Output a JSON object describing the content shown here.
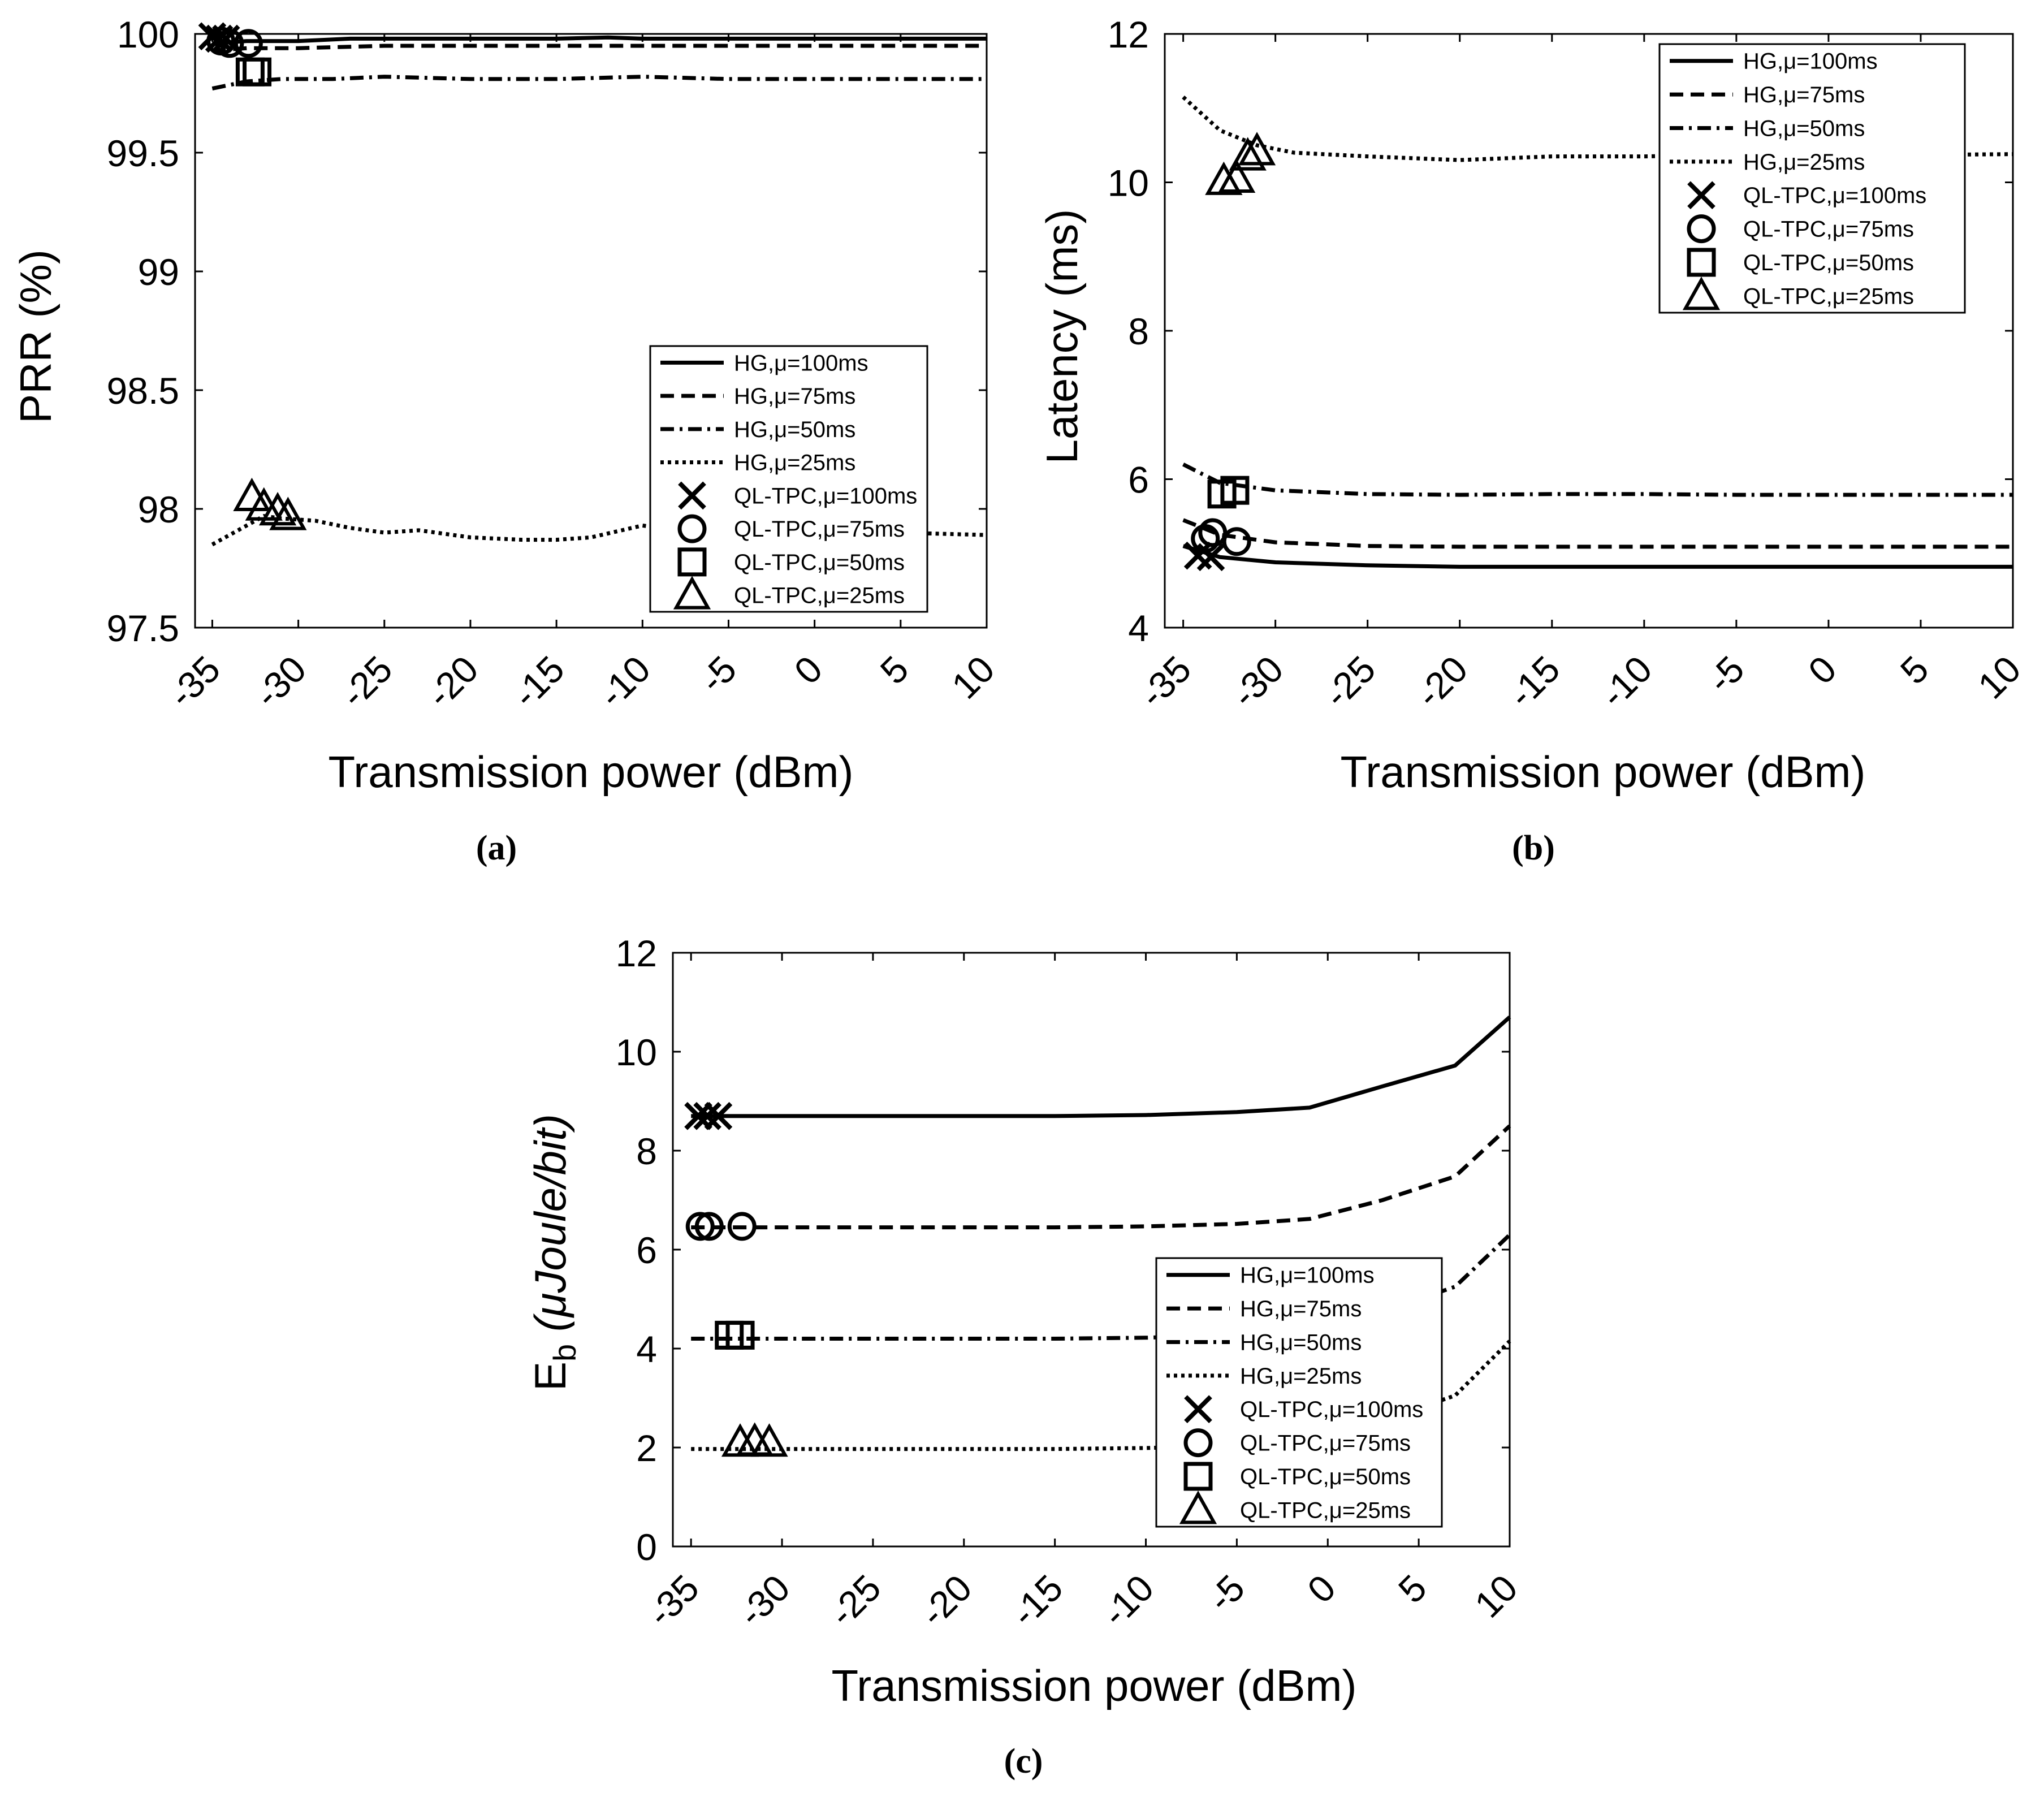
{
  "chart_data": [
    {
      "id": "a",
      "type": "line",
      "caption": "(a)",
      "xlabel": "Transmission power (dBm)",
      "ylabel": "PRR (%)",
      "xlim": [
        -36,
        10
      ],
      "ylim": [
        97.5,
        100
      ],
      "xticks": [
        "-35",
        "-30",
        "-25",
        "-20",
        "-15",
        "-10",
        "-5",
        "0",
        "5",
        "10"
      ],
      "yticks": [
        "97.5",
        "98",
        "98.5",
        "99",
        "99.5",
        "100"
      ],
      "legend_position": "middle-right",
      "series": [
        {
          "name": "HG,μ=100ms",
          "style": "solid",
          "x": [
            -35,
            -33,
            -30,
            -27,
            -25,
            -20,
            -15,
            -12,
            -10,
            -5,
            0,
            5,
            10
          ],
          "y": [
            99.96,
            99.97,
            99.97,
            99.98,
            99.98,
            99.98,
            99.98,
            99.985,
            99.98,
            99.98,
            99.98,
            99.98,
            99.98
          ]
        },
        {
          "name": "HG,μ=75ms",
          "style": "dash",
          "x": [
            -35,
            -33,
            -30,
            -25,
            -20,
            -15,
            -10,
            -5,
            0,
            5,
            10
          ],
          "y": [
            99.93,
            99.94,
            99.94,
            99.95,
            99.95,
            99.95,
            99.95,
            99.95,
            99.95,
            99.95,
            99.95
          ]
        },
        {
          "name": "HG,μ=50ms",
          "style": "dashdot",
          "x": [
            -35,
            -33,
            -31,
            -28,
            -25,
            -20,
            -15,
            -10,
            -5,
            0,
            5,
            10
          ],
          "y": [
            99.77,
            99.8,
            99.81,
            99.81,
            99.82,
            99.81,
            99.81,
            99.82,
            99.81,
            99.81,
            99.81,
            99.81
          ]
        },
        {
          "name": "HG,μ=25ms",
          "style": "dot",
          "x": [
            -35,
            -33,
            -32,
            -31,
            -29,
            -27,
            -25,
            -23,
            -20,
            -17,
            -15,
            -13,
            -10,
            -8,
            -5,
            -3,
            0,
            2,
            5,
            10
          ],
          "y": [
            97.85,
            97.93,
            97.97,
            97.96,
            97.95,
            97.92,
            97.9,
            97.91,
            97.88,
            97.87,
            97.87,
            97.88,
            97.93,
            97.91,
            97.9,
            97.92,
            97.9,
            97.89,
            97.9,
            97.89
          ]
        },
        {
          "name": "QL-TPC,μ=100ms",
          "style": "marker-x",
          "x": [
            -35,
            -34.6,
            -34.2
          ],
          "y": [
            99.99,
            99.98,
            99.98
          ]
        },
        {
          "name": "QL-TPC,μ=75ms",
          "style": "marker-o",
          "x": [
            -34.5,
            -34,
            -32.9
          ],
          "y": [
            99.97,
            99.96,
            99.96
          ]
        },
        {
          "name": "QL-TPC,μ=50ms",
          "style": "marker-s",
          "x": [
            -32.8,
            -32.4
          ],
          "y": [
            99.84,
            99.84
          ]
        },
        {
          "name": "QL-TPC,μ=25ms",
          "style": "marker-t",
          "x": [
            -32.7,
            -32,
            -31.2,
            -30.6
          ],
          "y": [
            98.05,
            98.01,
            97.99,
            97.97
          ]
        }
      ]
    },
    {
      "id": "b",
      "type": "line",
      "caption": "(b)",
      "xlabel": "Transmission power (dBm)",
      "ylabel": "Latency (ms)",
      "xlim": [
        -36,
        10
      ],
      "ylim": [
        4,
        12
      ],
      "xticks": [
        "-35",
        "-30",
        "-25",
        "-20",
        "-15",
        "-10",
        "-5",
        "0",
        "5",
        "10"
      ],
      "yticks": [
        "4",
        "6",
        "8",
        "10",
        "12"
      ],
      "legend_position": "top-right",
      "series": [
        {
          "name": "HG,μ=100ms",
          "style": "solid",
          "x": [
            -35,
            -33,
            -30,
            -25,
            -20,
            -15,
            -10,
            -5,
            0,
            5,
            10
          ],
          "y": [
            5.1,
            4.95,
            4.88,
            4.84,
            4.82,
            4.82,
            4.82,
            4.82,
            4.82,
            4.82,
            4.82
          ]
        },
        {
          "name": "HG,μ=75ms",
          "style": "dash",
          "x": [
            -35,
            -33,
            -30,
            -25,
            -20,
            -15,
            -10,
            -5,
            0,
            5,
            10
          ],
          "y": [
            5.45,
            5.25,
            5.15,
            5.1,
            5.09,
            5.09,
            5.09,
            5.09,
            5.09,
            5.09,
            5.09
          ]
        },
        {
          "name": "HG,μ=50ms",
          "style": "dashdot",
          "x": [
            -35,
            -33,
            -30,
            -25,
            -20,
            -15,
            -10,
            -5,
            0,
            5,
            10
          ],
          "y": [
            6.2,
            5.95,
            5.85,
            5.8,
            5.79,
            5.8,
            5.8,
            5.79,
            5.79,
            5.79,
            5.79
          ]
        },
        {
          "name": "HG,μ=25ms",
          "style": "dot",
          "x": [
            -35,
            -33,
            -31,
            -29,
            -25,
            -20,
            -15,
            -10,
            -5,
            0,
            5,
            10
          ],
          "y": [
            11.15,
            10.7,
            10.5,
            10.4,
            10.35,
            10.3,
            10.35,
            10.35,
            10.37,
            10.37,
            10.37,
            10.38
          ]
        },
        {
          "name": "QL-TPC,μ=100ms",
          "style": "marker-x",
          "x": [
            -34.2,
            -33.5
          ],
          "y": [
            4.97,
            4.95
          ]
        },
        {
          "name": "QL-TPC,μ=75ms",
          "style": "marker-o",
          "x": [
            -33.8,
            -33.4,
            -32.1
          ],
          "y": [
            5.2,
            5.28,
            5.16
          ]
        },
        {
          "name": "QL-TPC,μ=50ms",
          "style": "marker-s",
          "x": [
            -32.9,
            -32.2
          ],
          "y": [
            5.8,
            5.85
          ]
        },
        {
          "name": "QL-TPC,μ=25ms",
          "style": "marker-t",
          "x": [
            -32.8,
            -32.1,
            -31.5,
            -31
          ],
          "y": [
            10.02,
            10.05,
            10.35,
            10.42
          ]
        }
      ]
    },
    {
      "id": "c",
      "type": "line",
      "caption": "(c)",
      "xlabel": "Transmission power (dBm)",
      "ylabel_main": "E",
      "ylabel_sub": "b",
      "ylabel_rest": " (μJoule/bit)",
      "xlim": [
        -36,
        10
      ],
      "ylim": [
        0,
        12
      ],
      "xticks": [
        "-35",
        "-30",
        "-25",
        "-20",
        "-15",
        "-10",
        "-5",
        "0",
        "5",
        "10"
      ],
      "yticks": [
        "0",
        "2",
        "4",
        "6",
        "8",
        "10",
        "12"
      ],
      "legend_position": "lower-right",
      "series": [
        {
          "name": "HG,μ=100ms",
          "style": "solid",
          "x": [
            -35,
            -30,
            -25,
            -20,
            -15,
            -10,
            -5,
            -1,
            3,
            7,
            10
          ],
          "y": [
            8.7,
            8.7,
            8.7,
            8.7,
            8.7,
            8.72,
            8.78,
            8.87,
            9.3,
            9.72,
            10.7
          ]
        },
        {
          "name": "HG,μ=75ms",
          "style": "dash",
          "x": [
            -35,
            -30,
            -25,
            -20,
            -15,
            -10,
            -5,
            -1,
            3,
            7,
            10
          ],
          "y": [
            6.45,
            6.45,
            6.45,
            6.45,
            6.45,
            6.47,
            6.52,
            6.62,
            7.0,
            7.48,
            8.5
          ]
        },
        {
          "name": "HG,μ=50ms",
          "style": "dashdot",
          "x": [
            -35,
            -30,
            -25,
            -20,
            -15,
            -10,
            -5,
            -1,
            3,
            7,
            10
          ],
          "y": [
            4.2,
            4.2,
            4.2,
            4.2,
            4.2,
            4.22,
            4.27,
            4.37,
            4.75,
            5.25,
            6.3
          ]
        },
        {
          "name": "HG,μ=25ms",
          "style": "dot",
          "x": [
            -35,
            -30,
            -25,
            -20,
            -15,
            -10,
            -5,
            -1,
            3,
            7,
            10
          ],
          "y": [
            1.97,
            1.97,
            1.97,
            1.97,
            1.97,
            1.99,
            2.04,
            2.15,
            2.55,
            3.05,
            4.15
          ]
        },
        {
          "name": "QL-TPC,μ=100ms",
          "style": "marker-x",
          "x": [
            -34.6,
            -34.1,
            -33.5
          ],
          "y": [
            8.7,
            8.7,
            8.7
          ]
        },
        {
          "name": "QL-TPC,μ=75ms",
          "style": "marker-o",
          "x": [
            -34.5,
            -34,
            -32.2
          ],
          "y": [
            6.47,
            6.47,
            6.47
          ]
        },
        {
          "name": "QL-TPC,μ=50ms",
          "style": "marker-s",
          "x": [
            -32.9,
            -32.3
          ],
          "y": [
            4.27,
            4.27
          ]
        },
        {
          "name": "QL-TPC,μ=25ms",
          "style": "marker-t",
          "x": [
            -32.3,
            -31.5,
            -30.7
          ],
          "y": [
            2.1,
            2.12,
            2.1
          ]
        }
      ]
    }
  ]
}
